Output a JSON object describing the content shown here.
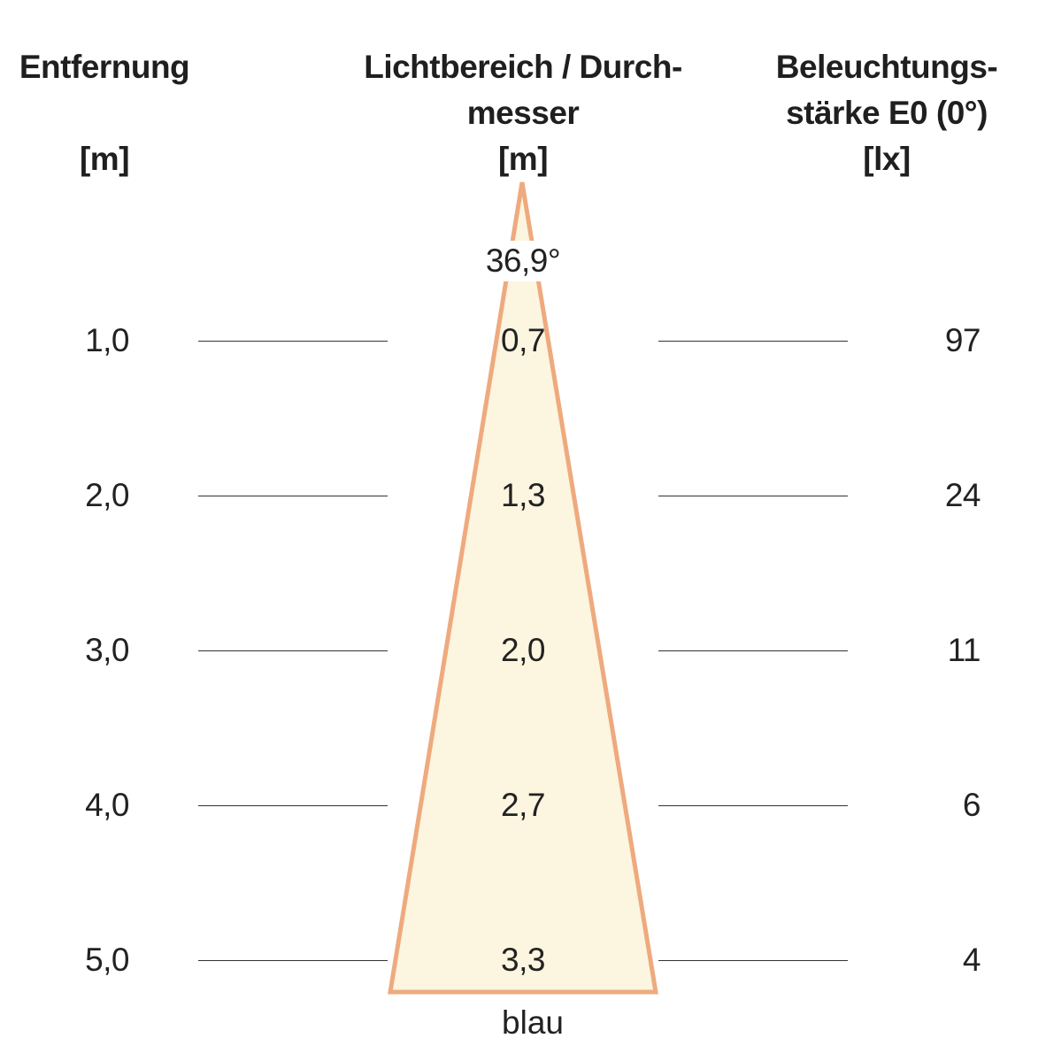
{
  "headers": {
    "distance": {
      "line1": "Entfernung",
      "unit": "[m]"
    },
    "diameter": {
      "line1": "Lichtbereich / Durch-",
      "line2": "messer",
      "unit": "[m]"
    },
    "illuminance": {
      "line1": "Beleuchtungs-",
      "line2": "stärke E0 (0°)",
      "unit": "[lx]"
    }
  },
  "beam_angle": "36,9°",
  "color_label": "blau",
  "rows": [
    {
      "distance": "1,0",
      "diameter": "0,7",
      "illuminance": "97"
    },
    {
      "distance": "2,0",
      "diameter": "1,3",
      "illuminance": "24"
    },
    {
      "distance": "3,0",
      "diameter": "2,0",
      "illuminance": "11"
    },
    {
      "distance": "4,0",
      "diameter": "2,7",
      "illuminance": "6"
    },
    {
      "distance": "5,0",
      "diameter": "3,3",
      "illuminance": "4"
    }
  ],
  "colors": {
    "cone_fill": "#fcf5df",
    "cone_stroke": "#eeaa7e",
    "text": "#222222"
  }
}
